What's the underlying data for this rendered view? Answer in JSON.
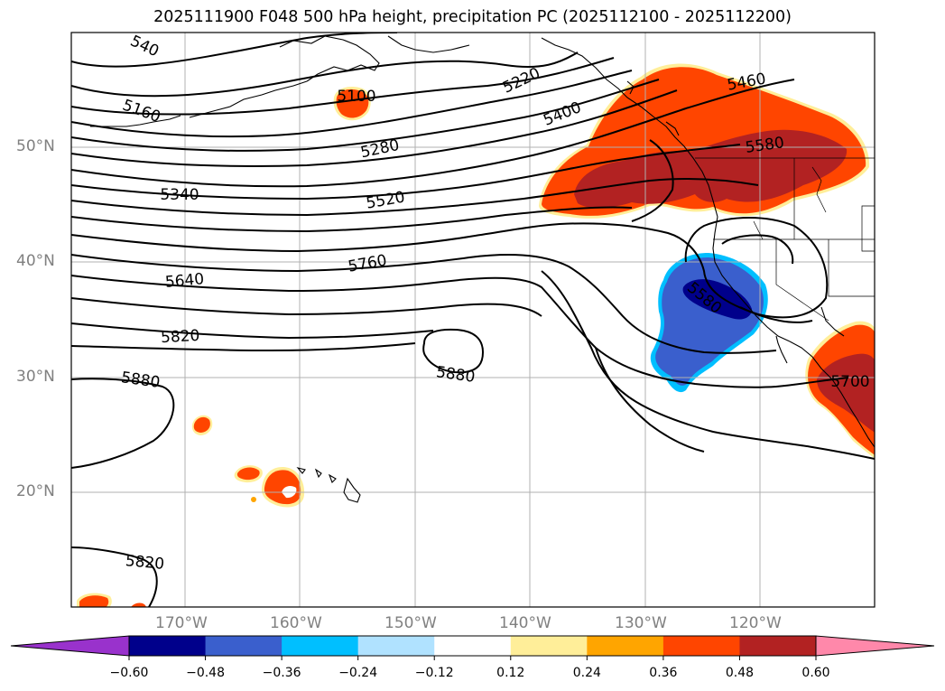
{
  "title": "2025111900 F048 500 hPa height, precipitation PC (2025112100 - 2025112200)",
  "lat_labels": [
    "50°N",
    "40°N",
    "30°N",
    "20°N"
  ],
  "lon_labels": [
    "170°W",
    "160°W",
    "150°W",
    "140°W",
    "130°W",
    "120°W"
  ],
  "contour_labels": [
    "5100",
    "5160",
    "5220",
    "5280",
    "5340",
    "5400",
    "5460",
    "5520",
    "5580",
    "5640",
    "5700",
    "5760",
    "5820",
    "5880",
    "5880",
    "5820",
    "5580",
    "540"
  ],
  "colorbar": {
    "ticks": [
      "−0.60",
      "−0.48",
      "−0.36",
      "−0.24",
      "−0.12",
      "0.12",
      "0.24",
      "0.36",
      "0.48",
      "0.60"
    ],
    "colors": {
      "under": "#9932cc",
      "bins": [
        "#00008b",
        "#3a5fcd",
        "#00bfff",
        "#b0e2ff",
        "#ffffff",
        "#ffee99",
        "#ffa500",
        "#ff4500",
        "#b22222"
      ],
      "over": "#ff88aa"
    }
  }
}
